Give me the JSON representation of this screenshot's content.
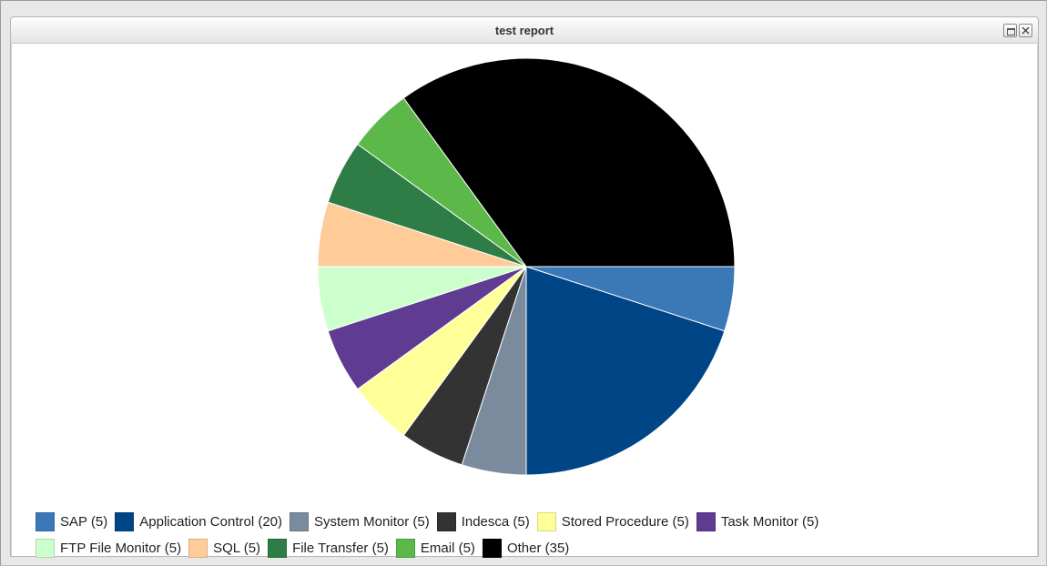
{
  "window": {
    "title": "test report"
  },
  "chart_data": {
    "type": "pie",
    "title": "",
    "slices": [
      {
        "label": "SAP (5)",
        "value": 5,
        "color": "#3a78b7"
      },
      {
        "label": "Application Control (20)",
        "value": 20,
        "color": "#004586"
      },
      {
        "label": "System Monitor (5)",
        "value": 5,
        "color": "#7b8b9e"
      },
      {
        "label": "Indesca (5)",
        "value": 5,
        "color": "#333333"
      },
      {
        "label": "Stored Procedure (5)",
        "value": 5,
        "color": "#ffff99"
      },
      {
        "label": "Task Monitor (5)",
        "value": 5,
        "color": "#5f3b91"
      },
      {
        "label": "FTP File Monitor (5)",
        "value": 5,
        "color": "#ccffcc"
      },
      {
        "label": "SQL (5)",
        "value": 5,
        "color": "#ffcc99"
      },
      {
        "label": "File Transfer (5)",
        "value": 5,
        "color": "#2e7d46"
      },
      {
        "label": "Email (5)",
        "value": 5,
        "color": "#5db84a"
      },
      {
        "label": "Other (35)",
        "value": 35,
        "color": "#000000"
      }
    ],
    "legend_placement": "bottom"
  }
}
